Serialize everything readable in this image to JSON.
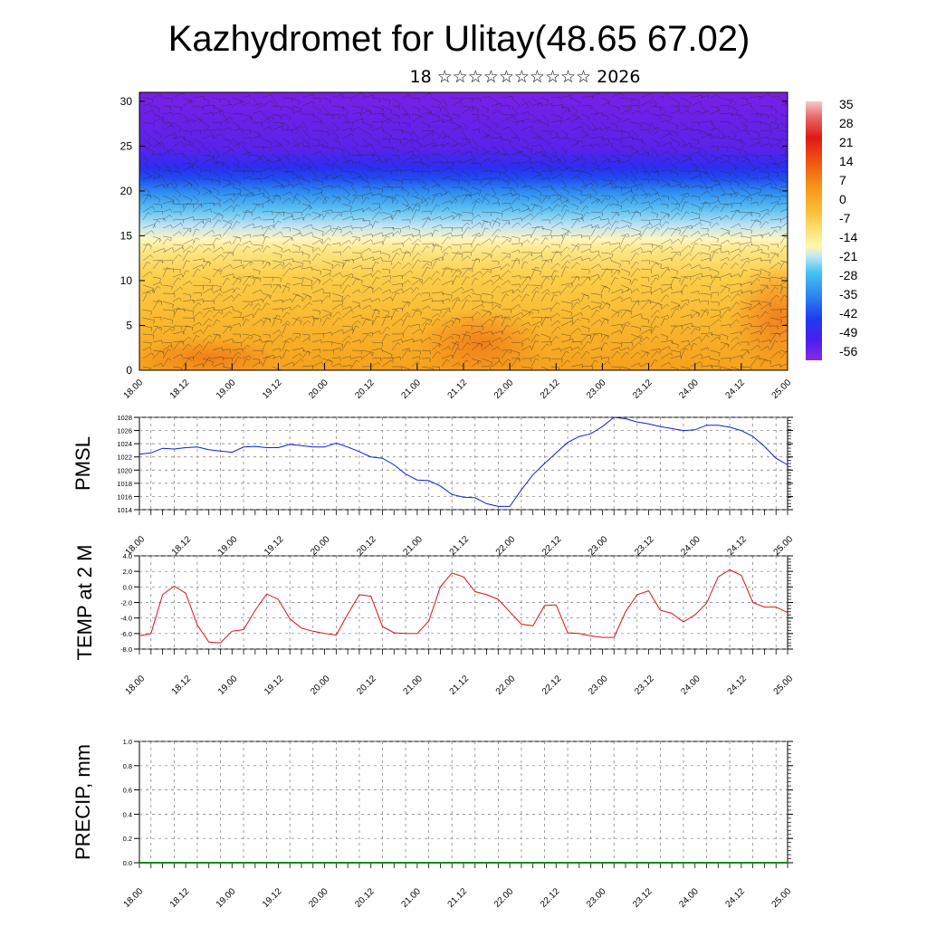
{
  "header": {
    "title": "Kazhydromet for Ulitay(48.65 67.02)",
    "subtitle": "18 ☆☆☆☆☆☆☆☆☆☆ 2026"
  },
  "chart_data": [
    {
      "id": "cross-section",
      "type": "heatmap",
      "title": "",
      "ylim": [
        0,
        31
      ],
      "yticks": [
        0,
        5,
        10,
        15,
        20,
        25,
        30
      ],
      "x_labels": [
        "18.00",
        "18.12",
        "19.00",
        "19.12",
        "20.00",
        "20.12",
        "21.00",
        "21.12",
        "22.00",
        "22.12",
        "23.00",
        "23.12",
        "24.00",
        "24.12",
        "25.00"
      ],
      "colorbar_labels": [
        "35",
        "28",
        "21",
        "14",
        "7",
        "0",
        "-7",
        "-14",
        "-21",
        "-28",
        "-35",
        "-42",
        "-49",
        "-56"
      ],
      "colorbar_range": [
        -60,
        40
      ],
      "description_fields": "temperature shading with wind barbs",
      "colors": {
        "cold": "#7a1fe6",
        "mid_cold": "#1e3cf0",
        "cool": "#46b4f0",
        "neutral": "#fff7b0",
        "warm": "#fbc63c",
        "hot": "#f58a18"
      }
    },
    {
      "id": "pmsl",
      "type": "line",
      "ylabel": "PMSL",
      "ylim": [
        1014,
        1028
      ],
      "yticks": [
        "1014",
        "1016",
        "1018",
        "1020",
        "1022",
        "1024",
        "1026",
        "1028"
      ],
      "x_labels": [
        "18.00",
        "18.12",
        "19.00",
        "19.12",
        "20.00",
        "20.12",
        "21.00",
        "21.12",
        "22.00",
        "22.12",
        "23.00",
        "23.12",
        "24.00",
        "24.12",
        "25.00"
      ],
      "color": "#0a1ee0",
      "x": [
        0,
        3,
        6,
        9,
        12,
        15,
        18,
        21,
        24,
        27,
        30,
        33,
        36,
        39,
        42,
        45,
        48,
        51,
        54,
        57,
        60,
        63,
        66,
        69,
        72,
        75,
        78,
        81,
        84,
        87,
        90,
        93,
        96,
        99,
        102,
        105,
        108,
        111,
        114,
        117,
        120,
        123,
        126,
        129,
        132,
        135,
        138,
        141,
        144,
        147,
        150,
        153,
        156,
        159,
        162,
        165,
        168
      ],
      "values": [
        1022.4,
        1022.6,
        1023.3,
        1023.2,
        1023.4,
        1023.5,
        1023.1,
        1022.9,
        1022.7,
        1023.5,
        1023.6,
        1023.4,
        1023.4,
        1023.9,
        1023.7,
        1023.5,
        1023.5,
        1024.1,
        1023.5,
        1022.8,
        1022.0,
        1021.8,
        1020.8,
        1019.4,
        1018.5,
        1018.4,
        1017.6,
        1016.3,
        1015.9,
        1015.8,
        1014.9,
        1014.5,
        1014.5,
        1017.0,
        1019.3,
        1021.0,
        1022.6,
        1024.2,
        1025.1,
        1025.5,
        1026.6,
        1028.0,
        1027.8,
        1027.3,
        1027.0,
        1026.6,
        1026.3,
        1026.0,
        1026.1,
        1026.8,
        1026.8,
        1026.5,
        1026.0,
        1025.1,
        1023.6,
        1021.8,
        1020.8
      ]
    },
    {
      "id": "temp2m",
      "type": "line",
      "ylabel": "TEMP at 2 M",
      "ylim": [
        -8,
        4
      ],
      "yticks": [
        "-8.0",
        "-6.0",
        "-4.0",
        "-2.0",
        "0.0",
        "2.0",
        "4.0"
      ],
      "x_labels": [
        "18.00",
        "18.12",
        "19.00",
        "19.12",
        "20.00",
        "20.12",
        "21.00",
        "21.12",
        "22.00",
        "22.12",
        "23.00",
        "23.12",
        "24.00",
        "24.12",
        "25.00"
      ],
      "color": "#e01010",
      "x": [
        0,
        3,
        6,
        9,
        12,
        15,
        18,
        21,
        24,
        27,
        30,
        33,
        36,
        39,
        42,
        45,
        48,
        51,
        54,
        57,
        60,
        63,
        66,
        69,
        72,
        75,
        78,
        81,
        84,
        87,
        90,
        93,
        96,
        99,
        102,
        105,
        108,
        111,
        114,
        117,
        120,
        123,
        126,
        129,
        132,
        135,
        138,
        141,
        144,
        147,
        150,
        153,
        156,
        159,
        162,
        165,
        168
      ],
      "values": [
        -6.3,
        -6.0,
        -1.0,
        0.1,
        -0.8,
        -4.9,
        -7.1,
        -7.2,
        -5.7,
        -5.5,
        -3.0,
        -0.9,
        -1.6,
        -4.1,
        -5.3,
        -5.7,
        -6.0,
        -6.2,
        -3.5,
        -1.0,
        -1.2,
        -5.1,
        -5.9,
        -6.0,
        -6.0,
        -4.4,
        0.0,
        1.8,
        1.3,
        -0.6,
        -1.0,
        -1.6,
        -3.2,
        -4.8,
        -5.0,
        -2.4,
        -2.3,
        -5.9,
        -6.0,
        -6.3,
        -6.5,
        -6.5,
        -3.2,
        -1.0,
        -0.5,
        -3.0,
        -3.4,
        -4.5,
        -3.6,
        -2.1,
        1.3,
        2.2,
        1.5,
        -2.0,
        -2.6,
        -2.6,
        -3.3
      ]
    },
    {
      "id": "precip",
      "type": "line",
      "ylabel": "PRECIP, mm",
      "ylim": [
        0,
        1
      ],
      "yticks": [
        "0.0",
        "0.2",
        "0.4",
        "0.6",
        "0.8",
        "1.0"
      ],
      "x_labels": [
        "18.00",
        "18.12",
        "19.00",
        "19.12",
        "20.00",
        "20.12",
        "21.00",
        "21.12",
        "22.00",
        "22.12",
        "23.00",
        "23.12",
        "24.00",
        "24.12",
        "25.00"
      ],
      "color": "#1a8a1a",
      "x": [
        0,
        168
      ],
      "values": [
        0,
        0
      ]
    }
  ]
}
